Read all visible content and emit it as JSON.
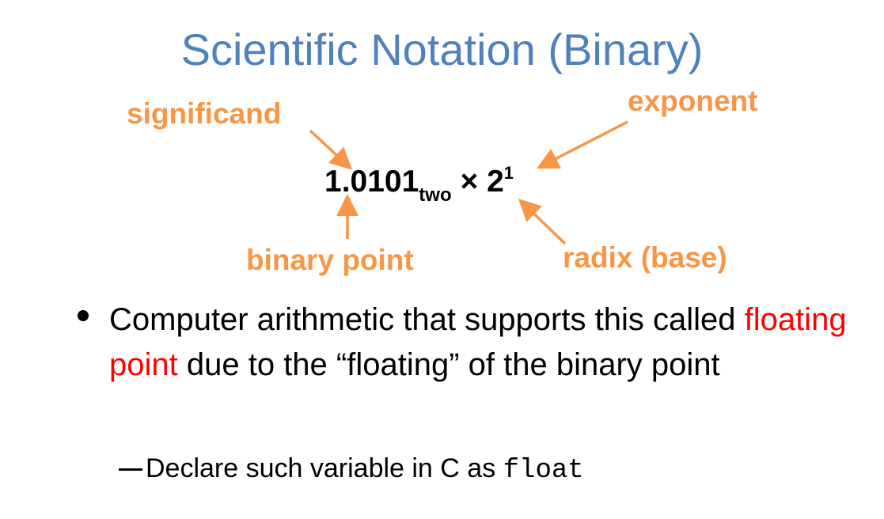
{
  "slide": {
    "title": "Scientific Notation (Binary)",
    "colors": {
      "title": "#4f81bd",
      "annotation": "#f79646",
      "emphasis": "#ff0000",
      "text": "#000000"
    },
    "formula": {
      "significand": "1.0101",
      "base_subscript": "two",
      "times": " × 2",
      "exponent": "1"
    },
    "labels": {
      "significand": "significand",
      "exponent": "exponent",
      "binary_point": "binary point",
      "radix": "radix (base)"
    },
    "bullet": {
      "text_before": "Computer arithmetic that supports this called ",
      "highlight": "floating point",
      "text_after": " due to the “floating” of the binary point"
    },
    "subbullet": {
      "text": "Declare such variable in C as ",
      "code": "float"
    }
  }
}
